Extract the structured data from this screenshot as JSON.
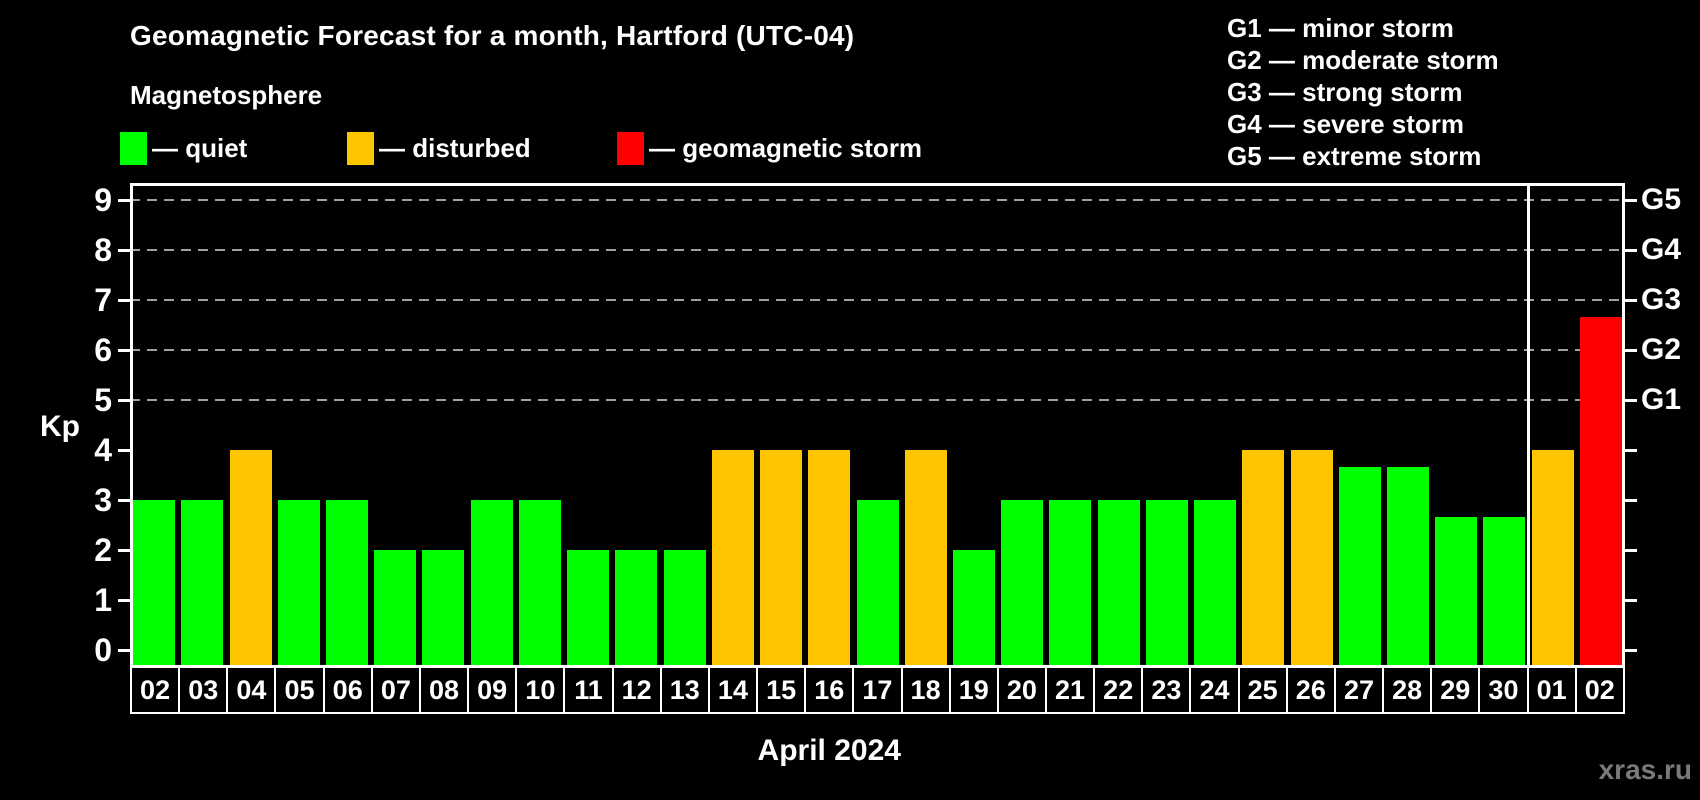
{
  "header": {
    "title": "Geomagnetic Forecast for a month, Hartford (UTC-04)",
    "subtitle": "Magnetosphere",
    "legend": [
      {
        "key": "quiet",
        "label": "— quiet"
      },
      {
        "key": "disturbed",
        "label": "— disturbed"
      },
      {
        "key": "storm",
        "label": "— geomagnetic storm"
      }
    ],
    "g_scale_legend": [
      "G1 — minor storm",
      "G2 — moderate storm",
      "G3 — strong storm",
      "G4 — severe storm",
      "G5 — extreme storm"
    ]
  },
  "colors": {
    "quiet": "#00ff00",
    "disturbed": "#ffc400",
    "storm": "#ff0000",
    "axis": "#ffffff",
    "grid": "#a0a0a0",
    "background": "#000000",
    "watermark": "#7a7a7a"
  },
  "footer": {
    "x_axis_title": "April 2024",
    "watermark": "xras.ru"
  },
  "chart_data": {
    "type": "bar",
    "title": "Geomagnetic Forecast for a month, Hartford (UTC-04)",
    "ylabel": "Kp",
    "xlabel": "April 2024",
    "ylim": [
      0,
      9
    ],
    "y_ticks": [
      0,
      1,
      2,
      3,
      4,
      5,
      6,
      7,
      8,
      9
    ],
    "grid_levels": [
      5,
      6,
      7,
      8,
      9
    ],
    "grid_style": "dashed",
    "legend_position": "top-left",
    "right_axis_labels": [
      {
        "kp": 5,
        "label": "G1"
      },
      {
        "kp": 6,
        "label": "G2"
      },
      {
        "kp": 7,
        "label": "G3"
      },
      {
        "kp": 8,
        "label": "G4"
      },
      {
        "kp": 9,
        "label": "G5"
      }
    ],
    "month_separator_after_index": 28,
    "bars": [
      {
        "date": "02",
        "kp": 3,
        "status": "quiet"
      },
      {
        "date": "03",
        "kp": 3,
        "status": "quiet"
      },
      {
        "date": "04",
        "kp": 4,
        "status": "disturbed"
      },
      {
        "date": "05",
        "kp": 3,
        "status": "quiet"
      },
      {
        "date": "06",
        "kp": 3,
        "status": "quiet"
      },
      {
        "date": "07",
        "kp": 2,
        "status": "quiet"
      },
      {
        "date": "08",
        "kp": 2,
        "status": "quiet"
      },
      {
        "date": "09",
        "kp": 3,
        "status": "quiet"
      },
      {
        "date": "10",
        "kp": 3,
        "status": "quiet"
      },
      {
        "date": "11",
        "kp": 2,
        "status": "quiet"
      },
      {
        "date": "12",
        "kp": 2,
        "status": "quiet"
      },
      {
        "date": "13",
        "kp": 2,
        "status": "quiet"
      },
      {
        "date": "14",
        "kp": 4,
        "status": "disturbed"
      },
      {
        "date": "15",
        "kp": 4,
        "status": "disturbed"
      },
      {
        "date": "16",
        "kp": 4,
        "status": "disturbed"
      },
      {
        "date": "17",
        "kp": 3,
        "status": "quiet"
      },
      {
        "date": "18",
        "kp": 4,
        "status": "disturbed"
      },
      {
        "date": "19",
        "kp": 2,
        "status": "quiet"
      },
      {
        "date": "20",
        "kp": 3,
        "status": "quiet"
      },
      {
        "date": "21",
        "kp": 3,
        "status": "quiet"
      },
      {
        "date": "22",
        "kp": 3,
        "status": "quiet"
      },
      {
        "date": "23",
        "kp": 3,
        "status": "quiet"
      },
      {
        "date": "24",
        "kp": 3,
        "status": "quiet"
      },
      {
        "date": "25",
        "kp": 4,
        "status": "disturbed"
      },
      {
        "date": "26",
        "kp": 4,
        "status": "disturbed"
      },
      {
        "date": "27",
        "kp": 3.67,
        "status": "quiet"
      },
      {
        "date": "28",
        "kp": 3.67,
        "status": "quiet"
      },
      {
        "date": "29",
        "kp": 2.67,
        "status": "quiet"
      },
      {
        "date": "30",
        "kp": 2.67,
        "status": "quiet"
      },
      {
        "date": "01",
        "kp": 4,
        "status": "disturbed"
      },
      {
        "date": "02",
        "kp": 6.67,
        "status": "storm"
      }
    ]
  }
}
